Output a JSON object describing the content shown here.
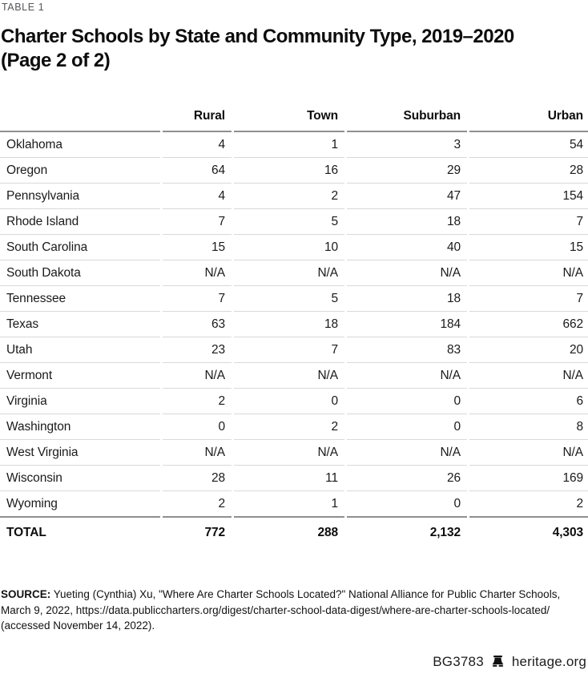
{
  "table_label": "TABLE 1",
  "title_lines": [
    "Charter Schools by State and Community Type, 2019–2020",
    "(Page 2 of 2)"
  ],
  "table": {
    "columns": [
      "Rural",
      "Town",
      "Suburban",
      "Urban"
    ],
    "rows": [
      [
        "Oklahoma",
        "4",
        "1",
        "3",
        "54"
      ],
      [
        "Oregon",
        "64",
        "16",
        "29",
        "28"
      ],
      [
        "Pennsylvania",
        "4",
        "2",
        "47",
        "154"
      ],
      [
        "Rhode Island",
        "7",
        "5",
        "18",
        "7"
      ],
      [
        "South Carolina",
        "15",
        "10",
        "40",
        "15"
      ],
      [
        "South Dakota",
        "N/A",
        "N/A",
        "N/A",
        "N/A"
      ],
      [
        "Tennessee",
        "7",
        "5",
        "18",
        "7"
      ],
      [
        "Texas",
        "63",
        "18",
        "184",
        "662"
      ],
      [
        "Utah",
        "23",
        "7",
        "83",
        "20"
      ],
      [
        "Vermont",
        "N/A",
        "N/A",
        "N/A",
        "N/A"
      ],
      [
        "Virginia",
        "2",
        "0",
        "0",
        "6"
      ],
      [
        "Washington",
        "0",
        "2",
        "0",
        "8"
      ],
      [
        "West Virginia",
        "N/A",
        "N/A",
        "N/A",
        "N/A"
      ],
      [
        "Wisconsin",
        "28",
        "11",
        "26",
        "169"
      ],
      [
        "Wyoming",
        "2",
        "1",
        "0",
        "2"
      ]
    ],
    "total_row": [
      "TOTAL",
      "772",
      "288",
      "2,132",
      "4,303"
    ]
  },
  "source": {
    "label": "SOURCE:",
    "text": "Yueting (Cynthia) Xu, \"Where Are Charter Schools Located?\" National Alliance for Public Charter Schools, March 9, 2022, https://data.publiccharters.org/digest/charter-school-data-digest/where-are-charter-schools-located/ (accessed November 14, 2022)."
  },
  "footer": {
    "doc_id": "BG3783",
    "site": "heritage.org",
    "logo": "liberty-bell-icon"
  },
  "colors": {
    "rule_heavy": "#8f8f92",
    "rule_light": "#d9d9d9",
    "label_gray": "#56565a",
    "text": "#1a1a1a"
  }
}
